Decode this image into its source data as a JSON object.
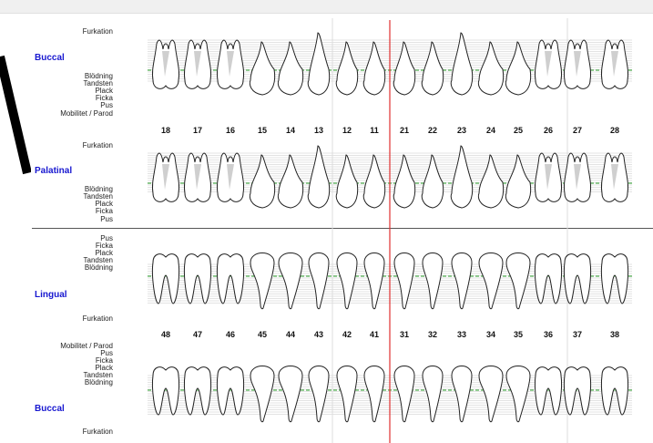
{
  "upper": {
    "top_labels": [
      "Furkation"
    ],
    "section_buccal": "Buccal",
    "buccal_labels": [
      "Blödning",
      "Tandsten",
      "Plack",
      "Ficka",
      "Pus",
      "Mobilitet / Parod"
    ],
    "teeth": [
      "18",
      "17",
      "16",
      "15",
      "14",
      "13",
      "12",
      "11",
      "21",
      "22",
      "23",
      "24",
      "25",
      "26",
      "27",
      "28"
    ],
    "mid_labels": [
      "Furkation"
    ],
    "section_palatinal": "Palatinal",
    "palatinal_labels": [
      "Blödning",
      "Tandsten",
      "Plack",
      "Ficka",
      "Pus"
    ]
  },
  "lower": {
    "lingual_labels": [
      "Pus",
      "Ficka",
      "Plack",
      "Tandsten",
      "Blödning"
    ],
    "section_lingual": "Lingual",
    "mid_labels": [
      "Furkation"
    ],
    "teeth": [
      "48",
      "47",
      "46",
      "45",
      "44",
      "43",
      "42",
      "41",
      "31",
      "32",
      "33",
      "34",
      "35",
      "36",
      "37",
      "38"
    ],
    "buccal_labels": [
      "Mobilitet / Parod",
      "Pus",
      "Ficka",
      "Plack",
      "Tandsten",
      "Blödning"
    ],
    "section_buccal": "Buccal",
    "bottom_labels": [
      "Furkation"
    ]
  },
  "colors": {
    "midline": "#e03030",
    "gumline": "#2a9d2a",
    "grid": "#c8c8c8",
    "section_title": "#1818d0"
  }
}
